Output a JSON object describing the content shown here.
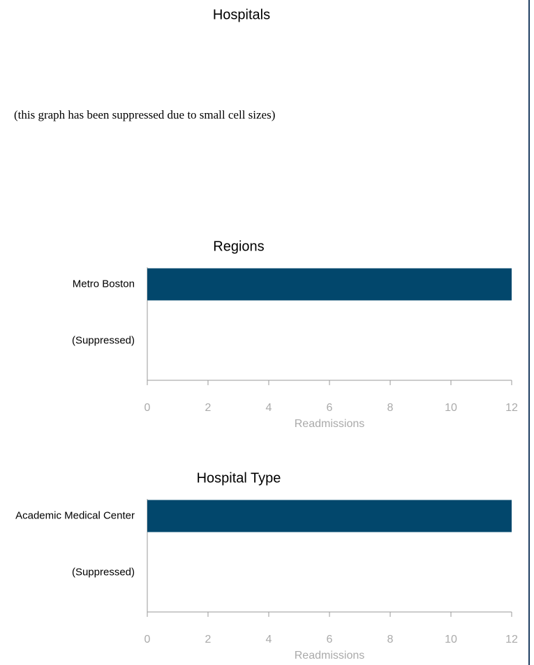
{
  "hospitals": {
    "title": "Hospitals",
    "note": "(this graph has been suppressed due to small cell sizes)"
  },
  "chart_data": [
    {
      "type": "bar",
      "orientation": "horizontal",
      "title": "Regions",
      "categories": [
        "Metro Boston",
        "(Suppressed)"
      ],
      "values": [
        12,
        null
      ],
      "color": "#02476c",
      "xlabel": "Readmissions",
      "xlim": [
        0,
        12
      ],
      "xticks": [
        0,
        2,
        4,
        6,
        8,
        10,
        12
      ]
    },
    {
      "type": "bar",
      "orientation": "horizontal",
      "title": "Hospital Type",
      "categories": [
        "Academic Medical Center",
        "(Suppressed)"
      ],
      "values": [
        12,
        null
      ],
      "color": "#02476c",
      "xlabel": "Readmissions",
      "xlim": [
        0,
        12
      ],
      "xticks": [
        0,
        2,
        4,
        6,
        8,
        10,
        12
      ]
    }
  ]
}
